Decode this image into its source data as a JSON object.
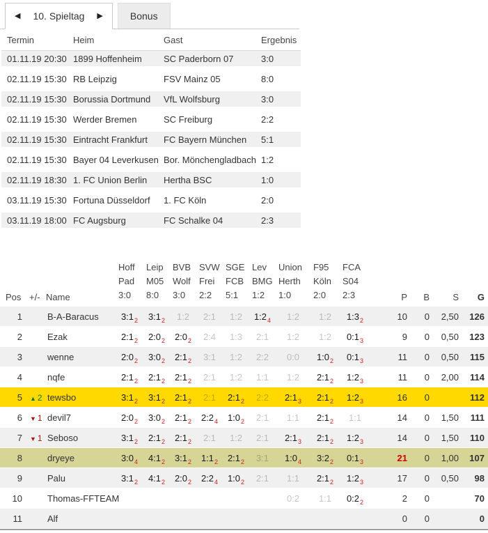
{
  "tabs": {
    "prev_icon": "◀",
    "next_icon": "▶",
    "active_label": "10. Spieltag",
    "bonus_label": "Bonus"
  },
  "matches": {
    "headers": {
      "termin": "Termin",
      "heim": "Heim",
      "gast": "Gast",
      "ergebnis": "Ergebnis"
    },
    "rows": [
      {
        "termin": "01.11.19 20:30",
        "heim": "1899 Hoffenheim",
        "gast": "SC Paderborn 07",
        "ergebnis": "3:0"
      },
      {
        "termin": "02.11.19 15:30",
        "heim": "RB Leipzig",
        "gast": "FSV Mainz 05",
        "ergebnis": "8:0"
      },
      {
        "termin": "02.11.19 15:30",
        "heim": "Borussia Dortmund",
        "gast": "VfL Wolfsburg",
        "ergebnis": "3:0"
      },
      {
        "termin": "02.11.19 15:30",
        "heim": "Werder Bremen",
        "gast": "SC Freiburg",
        "ergebnis": "2:2"
      },
      {
        "termin": "02.11.19 15:30",
        "heim": "Eintracht Frankfurt",
        "gast": "FC Bayern München",
        "ergebnis": "5:1"
      },
      {
        "termin": "02.11.19 15:30",
        "heim": "Bayer 04 Leverkusen",
        "gast": "Bor. Mönchengladbach",
        "ergebnis": "1:2"
      },
      {
        "termin": "02.11.19 18:30",
        "heim": "1. FC Union Berlin",
        "gast": "Hertha BSC",
        "ergebnis": "1:0"
      },
      {
        "termin": "03.11.19 15:30",
        "heim": "Fortuna Düsseldorf",
        "gast": "1. FC Köln",
        "ergebnis": "2:0"
      },
      {
        "termin": "03.11.19 18:00",
        "heim": "FC Augsburg",
        "gast": "FC Schalke 04",
        "ergebnis": "2:3"
      }
    ]
  },
  "standings": {
    "headers": {
      "pos": "Pos",
      "trend": "+/-",
      "name": "Name",
      "p": "P",
      "b": "B",
      "s": "S",
      "g": "G"
    },
    "match_columns": [
      {
        "home": "Hoff",
        "away": "Pad",
        "result": "3:0"
      },
      {
        "home": "Leip",
        "away": "M05",
        "result": "8:0"
      },
      {
        "home": "BVB",
        "away": "Wolf",
        "result": "3:0"
      },
      {
        "home": "SVW",
        "away": "Frei",
        "result": "2:2"
      },
      {
        "home": "SGE",
        "away": "FCB",
        "result": "5:1"
      },
      {
        "home": "Lev",
        "away": "BMG",
        "result": "1:2"
      },
      {
        "home": "Union",
        "away": "Herth",
        "result": "1:0"
      },
      {
        "home": "F95",
        "away": "Köln",
        "result": "2:0"
      },
      {
        "home": "FCA",
        "away": "S04",
        "result": "2:3"
      }
    ],
    "rows": [
      {
        "pos": "1",
        "trend": null,
        "name": "B-A-Baracus",
        "tips": [
          {
            "score": "3:1",
            "points": "2"
          },
          {
            "score": "3:1",
            "points": "2"
          },
          {
            "score": "1:2",
            "points": null
          },
          {
            "score": "2:1",
            "points": null
          },
          {
            "score": "1:2",
            "points": null
          },
          {
            "score": "1:2",
            "points": "4"
          },
          {
            "score": "1:2",
            "points": null
          },
          {
            "score": "1:2",
            "points": null
          },
          {
            "score": "1:3",
            "points": "2"
          }
        ],
        "p": "10",
        "b": "0",
        "s": "2,50",
        "g": "126",
        "highlight": null,
        "p_highlight": false
      },
      {
        "pos": "2",
        "trend": null,
        "name": "Ezak",
        "tips": [
          {
            "score": "2:1",
            "points": "2"
          },
          {
            "score": "2:0",
            "points": "2"
          },
          {
            "score": "2:0",
            "points": "2"
          },
          {
            "score": "2:4",
            "points": null
          },
          {
            "score": "1:3",
            "points": null
          },
          {
            "score": "2:1",
            "points": null
          },
          {
            "score": "1:2",
            "points": null
          },
          {
            "score": "1:2",
            "points": null
          },
          {
            "score": "0:1",
            "points": "3"
          }
        ],
        "p": "9",
        "b": "0",
        "s": "0,50",
        "g": "123",
        "highlight": null,
        "p_highlight": false
      },
      {
        "pos": "3",
        "trend": null,
        "name": "wenne",
        "tips": [
          {
            "score": "2:0",
            "points": "2"
          },
          {
            "score": "3:0",
            "points": "2"
          },
          {
            "score": "2:1",
            "points": "2"
          },
          {
            "score": "3:1",
            "points": null
          },
          {
            "score": "1:2",
            "points": null
          },
          {
            "score": "2:2",
            "points": null
          },
          {
            "score": "0:0",
            "points": null
          },
          {
            "score": "1:0",
            "points": "2"
          },
          {
            "score": "0:1",
            "points": "3"
          }
        ],
        "p": "11",
        "b": "0",
        "s": "0,50",
        "g": "115",
        "highlight": null,
        "p_highlight": false
      },
      {
        "pos": "4",
        "trend": null,
        "name": "nqfe",
        "tips": [
          {
            "score": "2:1",
            "points": "2"
          },
          {
            "score": "2:1",
            "points": "2"
          },
          {
            "score": "2:1",
            "points": "2"
          },
          {
            "score": "2:1",
            "points": null
          },
          {
            "score": "1:2",
            "points": null
          },
          {
            "score": "1:1",
            "points": null
          },
          {
            "score": "1:2",
            "points": null
          },
          {
            "score": "2:1",
            "points": "2"
          },
          {
            "score": "1:2",
            "points": "3"
          }
        ],
        "p": "11",
        "b": "0",
        "s": "2,00",
        "g": "114",
        "highlight": null,
        "p_highlight": false
      },
      {
        "pos": "5",
        "trend": {
          "dir": "up",
          "value": "2"
        },
        "name": "tewsbo",
        "tips": [
          {
            "score": "3:1",
            "points": "2"
          },
          {
            "score": "3:1",
            "points": "2"
          },
          {
            "score": "2:1",
            "points": "2"
          },
          {
            "score": "2:1",
            "points": null
          },
          {
            "score": "2:1",
            "points": "2"
          },
          {
            "score": "2:2",
            "points": null
          },
          {
            "score": "2:1",
            "points": "3"
          },
          {
            "score": "2:1",
            "points": "2"
          },
          {
            "score": "1:2",
            "points": "3"
          }
        ],
        "p": "16",
        "b": "0",
        "s": "",
        "g": "112",
        "highlight": "self",
        "p_highlight": false
      },
      {
        "pos": "6",
        "trend": {
          "dir": "down",
          "value": "1"
        },
        "name": "devil7",
        "tips": [
          {
            "score": "2:0",
            "points": "2"
          },
          {
            "score": "3:0",
            "points": "2"
          },
          {
            "score": "2:1",
            "points": "2"
          },
          {
            "score": "2:2",
            "points": "4"
          },
          {
            "score": "1:0",
            "points": "2"
          },
          {
            "score": "2:1",
            "points": null
          },
          {
            "score": "1:1",
            "points": null
          },
          {
            "score": "2:1",
            "points": "2"
          },
          {
            "score": "1:1",
            "points": null
          }
        ],
        "p": "14",
        "b": "0",
        "s": "1,50",
        "g": "111",
        "highlight": null,
        "p_highlight": false
      },
      {
        "pos": "7",
        "trend": {
          "dir": "down",
          "value": "1"
        },
        "name": "Seboso",
        "tips": [
          {
            "score": "3:1",
            "points": "2"
          },
          {
            "score": "2:1",
            "points": "2"
          },
          {
            "score": "2:1",
            "points": "2"
          },
          {
            "score": "2:1",
            "points": null
          },
          {
            "score": "1:2",
            "points": null
          },
          {
            "score": "2:1",
            "points": null
          },
          {
            "score": "2:1",
            "points": "3"
          },
          {
            "score": "2:1",
            "points": "2"
          },
          {
            "score": "1:2",
            "points": "3"
          }
        ],
        "p": "14",
        "b": "0",
        "s": "1,50",
        "g": "110",
        "highlight": null,
        "p_highlight": false
      },
      {
        "pos": "8",
        "trend": null,
        "name": "dryeye",
        "tips": [
          {
            "score": "3:0",
            "points": "4"
          },
          {
            "score": "4:1",
            "points": "2"
          },
          {
            "score": "3:1",
            "points": "2"
          },
          {
            "score": "1:1",
            "points": "2"
          },
          {
            "score": "2:1",
            "points": "2"
          },
          {
            "score": "3:1",
            "points": null
          },
          {
            "score": "1:0",
            "points": "4"
          },
          {
            "score": "3:2",
            "points": "2"
          },
          {
            "score": "0:1",
            "points": "3"
          }
        ],
        "p": "21",
        "b": "0",
        "s": "1,00",
        "g": "107",
        "highlight": "olive",
        "p_highlight": true
      },
      {
        "pos": "9",
        "trend": null,
        "name": "Palu",
        "tips": [
          {
            "score": "3:1",
            "points": "2"
          },
          {
            "score": "4:1",
            "points": "2"
          },
          {
            "score": "2:0",
            "points": "2"
          },
          {
            "score": "2:2",
            "points": "4"
          },
          {
            "score": "1:0",
            "points": "2"
          },
          {
            "score": "2:1",
            "points": null
          },
          {
            "score": "1:1",
            "points": null
          },
          {
            "score": "2:1",
            "points": "2"
          },
          {
            "score": "1:2",
            "points": "3"
          }
        ],
        "p": "17",
        "b": "0",
        "s": "0,50",
        "g": "98",
        "highlight": null,
        "p_highlight": false
      },
      {
        "pos": "10",
        "trend": null,
        "name": "Thomas-FFTEAM",
        "tips": [
          null,
          null,
          null,
          null,
          null,
          null,
          {
            "score": "0:2",
            "points": null
          },
          {
            "score": "1:1",
            "points": null
          },
          {
            "score": "0:2",
            "points": "2"
          }
        ],
        "p": "2",
        "b": "0",
        "s": "",
        "g": "70",
        "highlight": null,
        "p_highlight": false
      },
      {
        "pos": "11",
        "trend": null,
        "name": "Alf",
        "tips": [
          null,
          null,
          null,
          null,
          null,
          null,
          null,
          null,
          null
        ],
        "p": "0",
        "b": "0",
        "s": "",
        "g": "0",
        "highlight": null,
        "p_highlight": false
      }
    ]
  },
  "colors": {
    "row_highlight_yellow": "#ffd900",
    "row_highlight_olive": "#d6d596",
    "sub_points_red": "#cc2222",
    "top_points_red": "#cc0000",
    "trend_up_green": "#0a7a0a",
    "trend_down_red": "#b01212"
  }
}
